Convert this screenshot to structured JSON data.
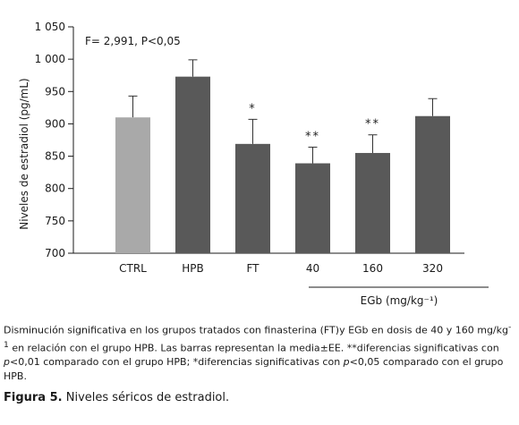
{
  "chart_data": {
    "type": "bar",
    "categories": [
      "CTRL",
      "HPB",
      "FT",
      "40",
      "160",
      "320"
    ],
    "values": [
      910,
      973,
      869,
      839,
      855,
      912
    ],
    "errors": [
      33,
      26,
      38,
      25,
      28,
      27
    ],
    "significance": [
      "",
      "",
      "*",
      "**",
      "**",
      ""
    ],
    "colors": [
      "#a9a9a9",
      "#595959",
      "#595959",
      "#595959",
      "#595959",
      "#595959"
    ],
    "ylabel": "Niveles de estradiol (pg/mL)",
    "ylim": [
      700,
      1050
    ],
    "yticks": [
      700,
      750,
      800,
      850,
      900,
      950,
      1000,
      1050
    ],
    "ytick_labels": [
      "700",
      "750",
      "800",
      "850",
      "900",
      "950",
      "1 000",
      "1 050"
    ],
    "stat_text": "F= 2,991, P<0,05",
    "group_label": "EGb (mg/kg⁻¹)",
    "group_categories": [
      "40",
      "160",
      "320"
    ]
  },
  "caption": {
    "part1": "Disminución significativa en los grupos tratados con finasterina (FT)y EGb en dosis de 40 y 160 mg/kg",
    "sup": "-1",
    "part2": " en relación con el grupo HPB. Las barras representan la media±EE. **diferencias significativas con ",
    "p1": "p",
    "part3": "<0,01 comparado con el grupo HPB; *diferencias significativas con ",
    "p2": "p",
    "part4": "<0,05 comparado con el grupo HPB."
  },
  "figure": {
    "label": "Figura 5.",
    "title": " Niveles séricos de estradiol."
  }
}
